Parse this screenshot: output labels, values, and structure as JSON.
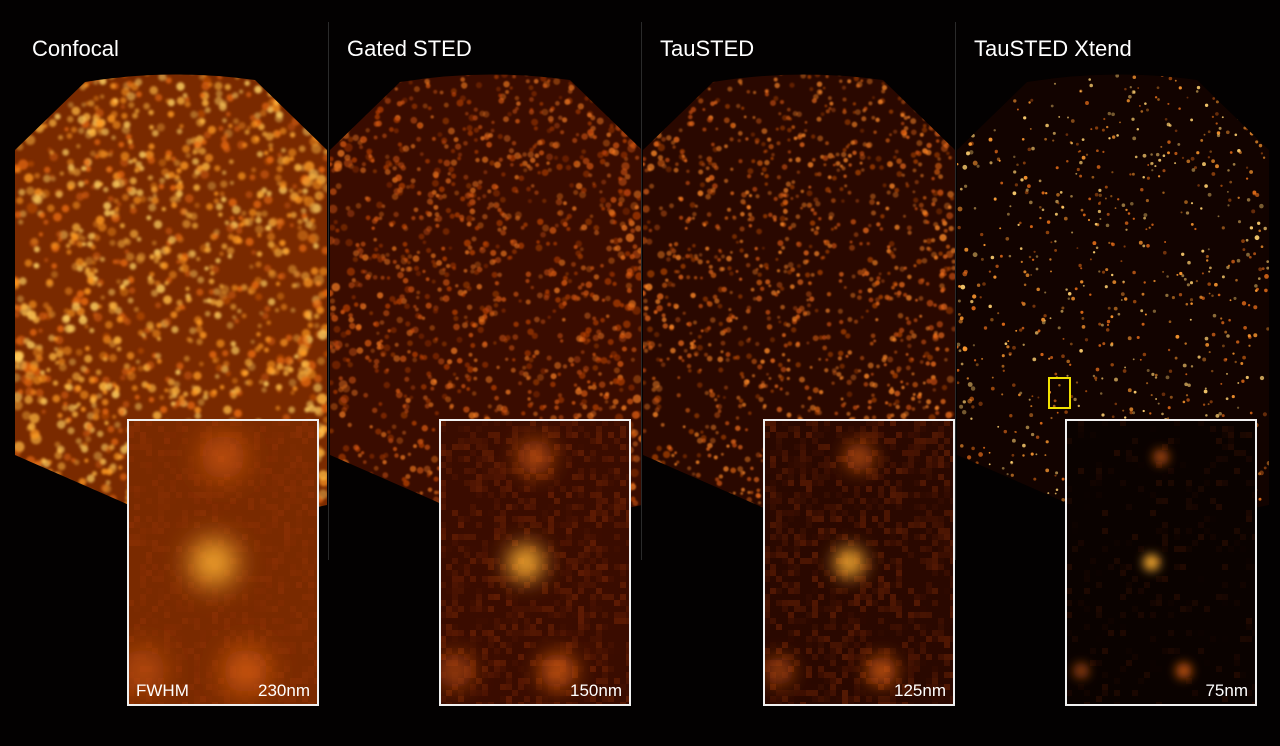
{
  "panels": [
    {
      "title": "Confocal",
      "inset_label": "230nm",
      "inset_caption": "FWHM"
    },
    {
      "title": "Gated STED",
      "inset_label": "150nm"
    },
    {
      "title": "TauSTED",
      "inset_label": "125nm"
    },
    {
      "title": "TauSTED Xtend",
      "inset_label": "75nm"
    }
  ]
}
